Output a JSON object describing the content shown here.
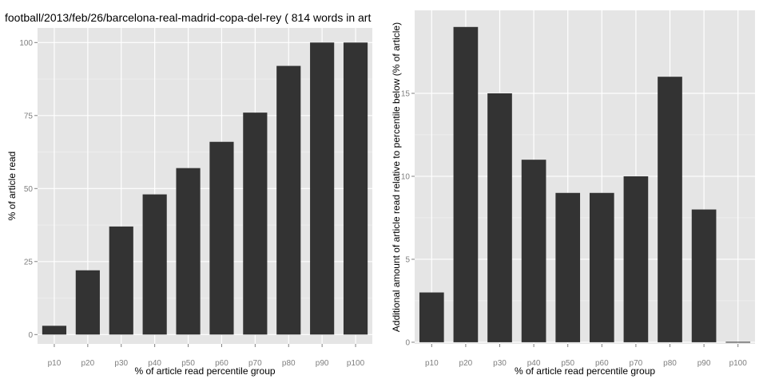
{
  "chart_data": [
    {
      "type": "bar",
      "title": "football/2013/feb/26/barcelona-real-madrid-copa-del-rey ( 814 words in art",
      "xlabel": "% of article read percentile group",
      "ylabel": "% of article read",
      "categories": [
        "p10",
        "p20",
        "p30",
        "p40",
        "p50",
        "p60",
        "p70",
        "p80",
        "p90",
        "p100"
      ],
      "values": [
        3,
        22,
        37,
        48,
        57,
        66,
        76,
        92,
        100,
        100
      ],
      "ylim": [
        -3.2,
        105
      ],
      "yticks": [
        0,
        25,
        50,
        75,
        100
      ],
      "grid": true,
      "bar_color": "#333333",
      "panel_color": "#e5e5e5"
    },
    {
      "type": "bar",
      "title": "",
      "xlabel": "% of article read percentile group",
      "ylabel": "Additional amount of article read relative to percentile below (% of article)",
      "categories": [
        "p10",
        "p20",
        "p30",
        "p40",
        "p50",
        "p60",
        "p70",
        "p80",
        "p90",
        "p100"
      ],
      "values": [
        3,
        19,
        15,
        11,
        9,
        9,
        10,
        16,
        8,
        0
      ],
      "ylim": [
        -0.1,
        20
      ],
      "yticks": [
        0,
        5,
        10,
        15
      ],
      "grid": true,
      "bar_color": "#333333",
      "panel_color": "#e5e5e5"
    }
  ]
}
